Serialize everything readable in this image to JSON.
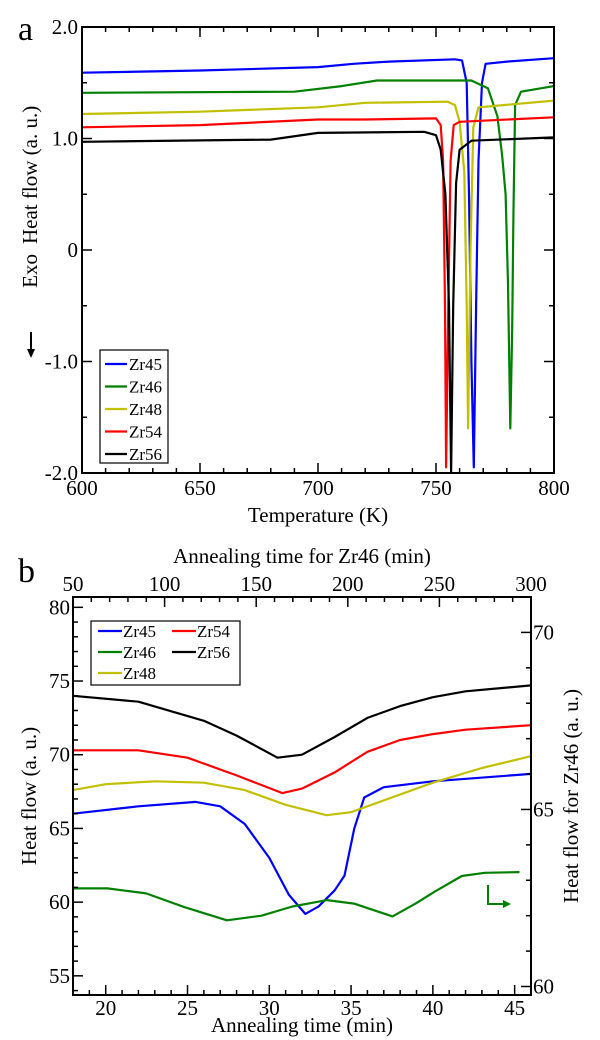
{
  "chart_data": [
    {
      "type": "line",
      "panel_label": "a",
      "xlabel": "Temperature (K)",
      "ylabel": "Heat flow (a. u.)",
      "ylabel_prefix": "Exo",
      "xlim": [
        600,
        800
      ],
      "ylim": [
        -2.0,
        2.0
      ],
      "xticks": [
        600,
        650,
        700,
        750,
        800
      ],
      "xtick_labels": [
        "600",
        "650",
        "700",
        "750",
        "800"
      ],
      "yticks": [
        2.0,
        1.0,
        0,
        -1.0,
        -2.0
      ],
      "ytick_labels": [
        "2.0",
        "1.0",
        "0",
        "-1.0",
        "-2.0"
      ],
      "legend_position": "bottom-left",
      "series": [
        {
          "name": "Zr45",
          "color": "#0000ff",
          "points": [
            [
              600,
              1.59
            ],
            [
              650,
              1.61
            ],
            [
              700,
              1.64
            ],
            [
              715,
              1.67
            ],
            [
              730,
              1.69
            ],
            [
              758,
              1.71
            ],
            [
              761,
              1.7
            ],
            [
              763,
              1.5
            ],
            [
              764,
              0.5
            ],
            [
              765,
              -1.0
            ],
            [
              766,
              -1.95
            ],
            [
              767,
              -0.5
            ],
            [
              768,
              0.8
            ],
            [
              769.5,
              1.5
            ],
            [
              771,
              1.67
            ],
            [
              780,
              1.69
            ],
            [
              800,
              1.72
            ]
          ]
        },
        {
          "name": "Zr46",
          "color": "#008000",
          "points": [
            [
              600,
              1.41
            ],
            [
              690,
              1.42
            ],
            [
              710,
              1.47
            ],
            [
              725,
              1.52
            ],
            [
              765,
              1.52
            ],
            [
              772,
              1.45
            ],
            [
              776,
              1.2
            ],
            [
              778,
              0.85
            ],
            [
              779.5,
              0.5
            ],
            [
              780.5,
              -0.3
            ],
            [
              781.5,
              -1.6
            ],
            [
              782.3,
              -0.7
            ],
            [
              782.8,
              0.3
            ],
            [
              783.5,
              1.3
            ],
            [
              786,
              1.42
            ],
            [
              800,
              1.47
            ]
          ]
        },
        {
          "name": "Zr48",
          "color": "#c0c000",
          "points": [
            [
              600,
              1.22
            ],
            [
              650,
              1.24
            ],
            [
              700,
              1.28
            ],
            [
              720,
              1.32
            ],
            [
              755,
              1.33
            ],
            [
              758,
              1.3
            ],
            [
              760,
              1.15
            ],
            [
              762,
              0.7
            ],
            [
              763,
              -0.5
            ],
            [
              763.6,
              -1.6
            ],
            [
              764.6,
              0
            ],
            [
              765.8,
              1.1
            ],
            [
              768,
              1.28
            ],
            [
              800,
              1.34
            ]
          ]
        },
        {
          "name": "Zr54",
          "color": "#ff0000",
          "points": [
            [
              600,
              1.1
            ],
            [
              650,
              1.12
            ],
            [
              700,
              1.17
            ],
            [
              720,
              1.17
            ],
            [
              750,
              1.18
            ],
            [
              752,
              1.12
            ],
            [
              753,
              0.8
            ],
            [
              753.8,
              -0.5
            ],
            [
              754.3,
              -1.95
            ],
            [
              755.2,
              -0.5
            ],
            [
              756.2,
              0.8
            ],
            [
              757.5,
              1.12
            ],
            [
              760,
              1.15
            ],
            [
              800,
              1.19
            ]
          ]
        },
        {
          "name": "Zr56",
          "color": "#000000",
          "points": [
            [
              600,
              0.97
            ],
            [
              680,
              0.99
            ],
            [
              700,
              1.05
            ],
            [
              745,
              1.06
            ],
            [
              750,
              1.03
            ],
            [
              752,
              0.9
            ],
            [
              754,
              0.5
            ],
            [
              755.5,
              -0.5
            ],
            [
              756.4,
              -2.0
            ],
            [
              757.3,
              -0.5
            ],
            [
              758.5,
              0.6
            ],
            [
              760,
              0.9
            ],
            [
              765,
              0.98
            ],
            [
              800,
              1.01
            ]
          ]
        }
      ]
    },
    {
      "type": "line",
      "panel_label": "b",
      "xlabel": "Annealing time (min)",
      "x2label": "Annealing time for Zr46 (min)",
      "ylabel": "Heat flow (a. u.)",
      "y2label": "Heat flow for Zr46 (a. u.)",
      "xlim": [
        18,
        46
      ],
      "x2lim": [
        50,
        300
      ],
      "ylim": [
        53.7,
        80.7
      ],
      "y2lim": [
        59.76,
        71
      ],
      "xticks": [
        20,
        25,
        30,
        35,
        40,
        45
      ],
      "xtick_labels": [
        "20",
        "25",
        "30",
        "35",
        "40",
        "45"
      ],
      "x2ticks": [
        50,
        100,
        150,
        200,
        250,
        300
      ],
      "x2tick_labels": [
        "50",
        "100",
        "150",
        "200",
        "250",
        "300"
      ],
      "yticks": [
        55,
        60,
        65,
        70,
        75,
        80
      ],
      "ytick_labels": [
        "55",
        "60",
        "65",
        "70",
        "75",
        "80"
      ],
      "y2ticks": [
        60,
        65,
        70
      ],
      "y2tick_labels": [
        "60",
        "65",
        "70"
      ],
      "legend_position": "top-left",
      "annotation": "arrow indicating Zr46 uses right and top axes",
      "series": [
        {
          "name": "Zr45",
          "color": "#0000ff",
          "axes": "primary",
          "points": [
            [
              18,
              66.0
            ],
            [
              22,
              66.5
            ],
            [
              25.5,
              66.8
            ],
            [
              27,
              66.5
            ],
            [
              28.5,
              65.3
            ],
            [
              30,
              63.0
            ],
            [
              31.2,
              60.5
            ],
            [
              32.2,
              59.2
            ],
            [
              33,
              59.7
            ],
            [
              34,
              60.8
            ],
            [
              34.6,
              61.8
            ],
            [
              35.2,
              65.0
            ],
            [
              35.8,
              67.1
            ],
            [
              37,
              67.8
            ],
            [
              40,
              68.2
            ],
            [
              46,
              68.7
            ]
          ]
        },
        {
          "name": "Zr46",
          "color": "#008000",
          "axes": "secondary",
          "points": [
            [
              50,
              62.77
            ],
            [
              68.9,
              62.77
            ],
            [
              89.9,
              62.63
            ],
            [
              110.9,
              62.24
            ],
            [
              134,
              61.87
            ],
            [
              152.9,
              62.0
            ],
            [
              169.7,
              62.26
            ],
            [
              188.7,
              62.44
            ],
            [
              203.4,
              62.34
            ],
            [
              224.4,
              61.98
            ],
            [
              237,
              62.34
            ],
            [
              247.5,
              62.68
            ],
            [
              262.2,
              63.12
            ],
            [
              274.8,
              63.21
            ],
            [
              293.7,
              63.23
            ]
          ]
        },
        {
          "name": "Zr48",
          "color": "#c0c000",
          "axes": "primary",
          "points": [
            [
              18,
              67.6
            ],
            [
              20,
              68.0
            ],
            [
              23,
              68.2
            ],
            [
              26,
              68.1
            ],
            [
              28.5,
              67.6
            ],
            [
              31,
              66.6
            ],
            [
              33.5,
              65.9
            ],
            [
              35,
              66.1
            ],
            [
              37,
              66.9
            ],
            [
              40,
              68.1
            ],
            [
              43,
              69.1
            ],
            [
              46,
              69.9
            ]
          ]
        },
        {
          "name": "Zr54",
          "color": "#ff0000",
          "axes": "primary",
          "points": [
            [
              18,
              70.3
            ],
            [
              22,
              70.3
            ],
            [
              25,
              69.8
            ],
            [
              28,
              68.6
            ],
            [
              30.8,
              67.4
            ],
            [
              32,
              67.7
            ],
            [
              34,
              68.8
            ],
            [
              36,
              70.2
            ],
            [
              38,
              71.0
            ],
            [
              40,
              71.4
            ],
            [
              42,
              71.7
            ],
            [
              46,
              72.0
            ]
          ]
        },
        {
          "name": "Zr56",
          "color": "#000000",
          "axes": "primary",
          "points": [
            [
              18,
              74.0
            ],
            [
              22,
              73.6
            ],
            [
              26,
              72.3
            ],
            [
              28,
              71.3
            ],
            [
              30.5,
              69.8
            ],
            [
              32,
              70.0
            ],
            [
              34,
              71.2
            ],
            [
              36,
              72.5
            ],
            [
              38,
              73.3
            ],
            [
              40,
              73.9
            ],
            [
              42,
              74.3
            ],
            [
              46,
              74.7
            ]
          ]
        }
      ]
    }
  ]
}
